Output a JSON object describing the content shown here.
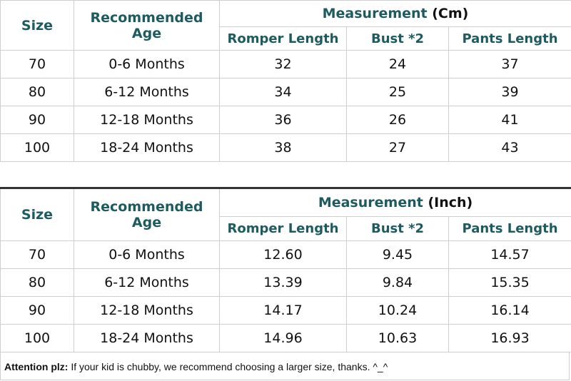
{
  "tables": [
    {
      "headers": {
        "size": "Size",
        "age": "Recommended Age",
        "measurement": "Measurement",
        "unit": "(Cm)",
        "columns": [
          "Romper Length",
          "Bust *2",
          "Pants Length"
        ]
      },
      "rows": [
        [
          "70",
          "0-6 Months",
          "32",
          "24",
          "37"
        ],
        [
          "80",
          "6-12 Months",
          "34",
          "25",
          "39"
        ],
        [
          "90",
          "12-18 Months",
          "36",
          "26",
          "41"
        ],
        [
          "100",
          "18-24 Months",
          "38",
          "27",
          "43"
        ]
      ]
    },
    {
      "headers": {
        "size": "Size",
        "age": "Recommended Age",
        "measurement": "Measurement",
        "unit": "(Inch)",
        "columns": [
          "Romper Length",
          "Bust *2",
          "Pants Length"
        ]
      },
      "rows": [
        [
          "70",
          "0-6 Months",
          "12.60",
          "9.45",
          "14.57"
        ],
        [
          "80",
          "6-12 Months",
          "13.39",
          "9.84",
          "15.35"
        ],
        [
          "90",
          "12-18 Months",
          "14.17",
          "10.24",
          "16.14"
        ],
        [
          "100",
          "18-24 Months",
          "14.96",
          "10.63",
          "16.93"
        ]
      ]
    }
  ],
  "footer": {
    "label": "Attention plz:",
    "text": "If your kid is chubby, we recommend choosing a larger size, thanks. ^_^"
  }
}
